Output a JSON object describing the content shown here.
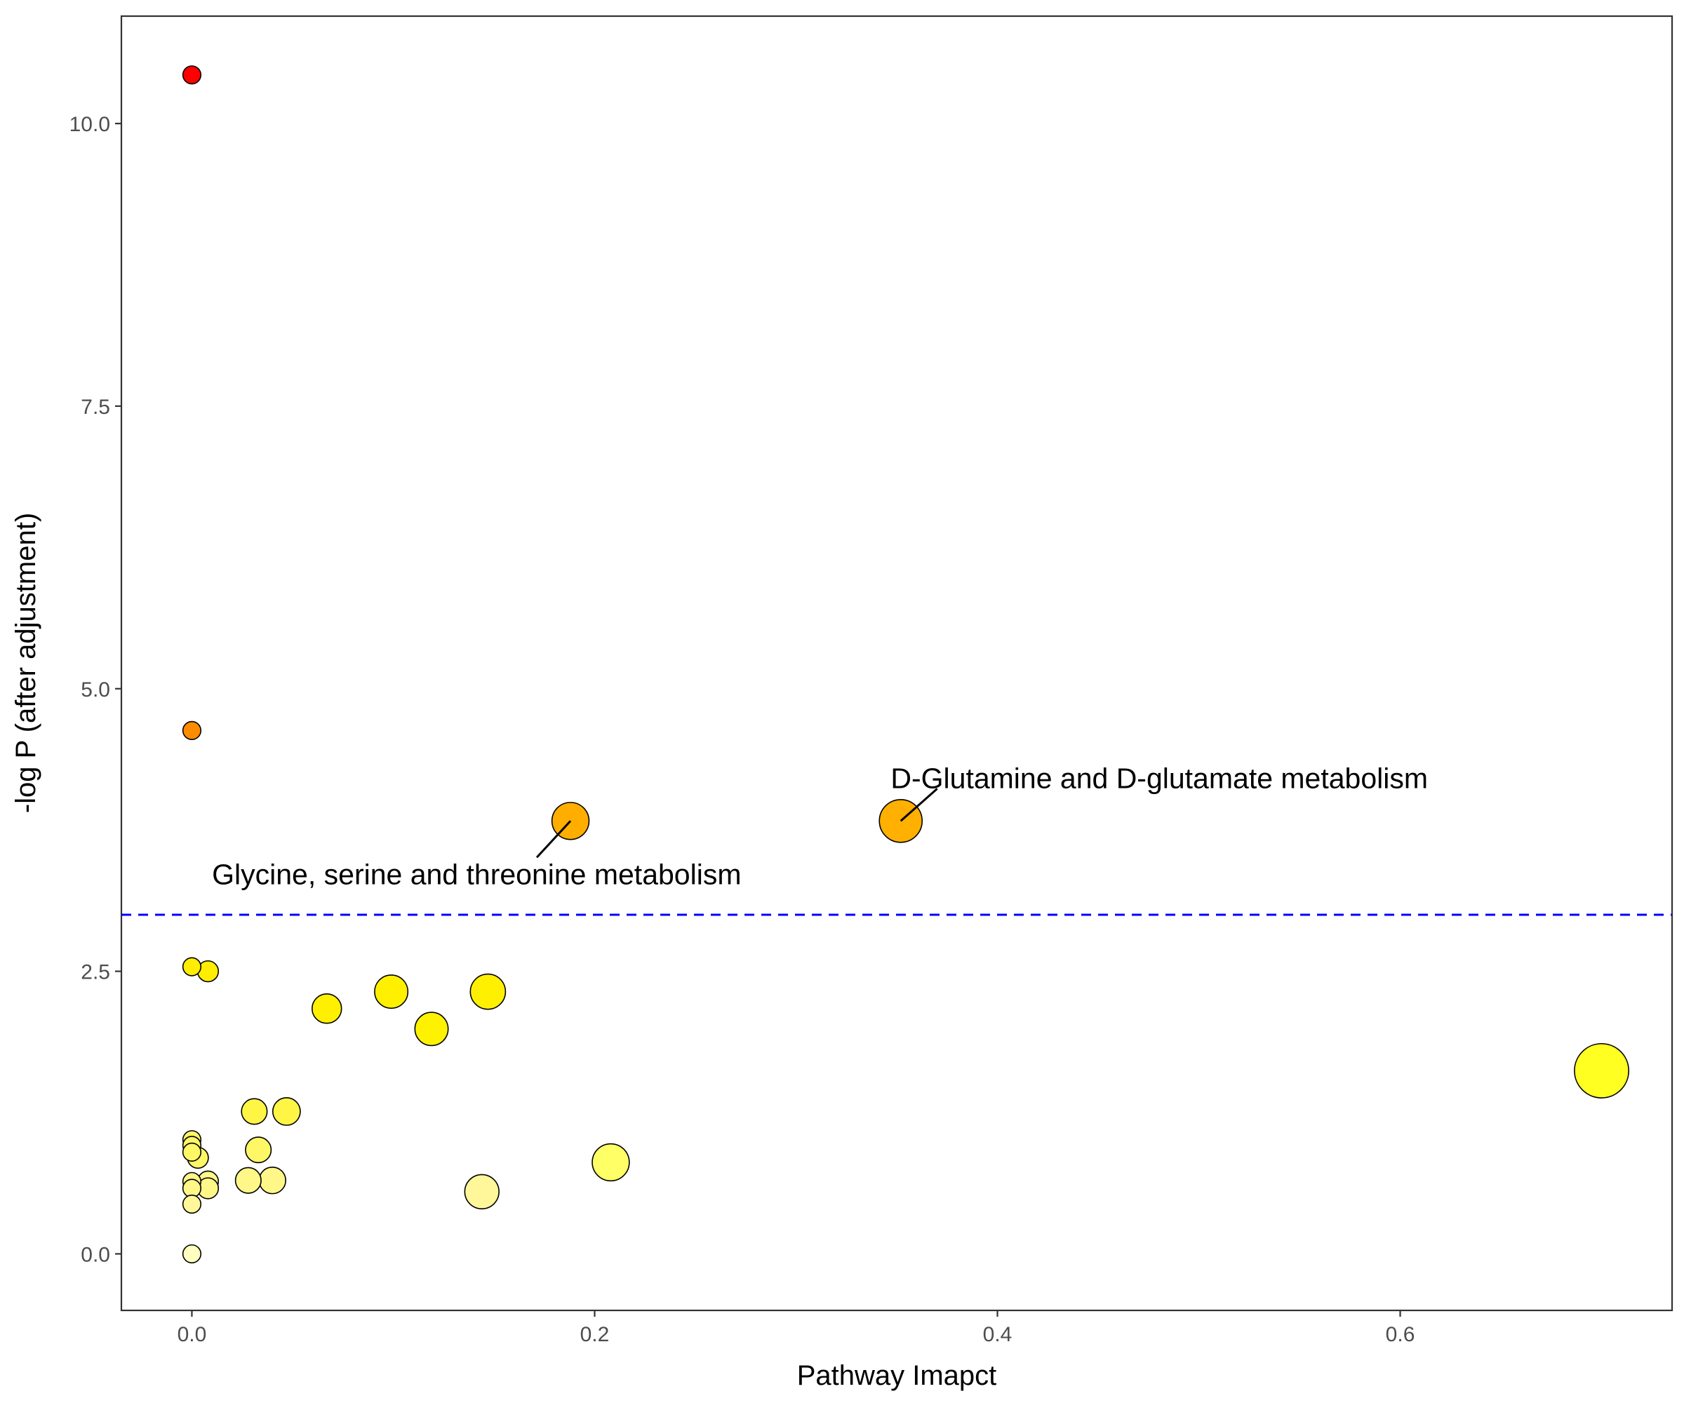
{
  "chart_data": {
    "type": "scatter",
    "title": "",
    "xlabel": "Pathway Imapct",
    "ylabel": "-log P (after adjustment)",
    "xlim": [
      -0.035,
      0.735
    ],
    "ylim": [
      -0.5,
      10.95
    ],
    "x_ticks": [
      {
        "value": 0.0,
        "label": "0.0"
      },
      {
        "value": 0.2,
        "label": "0.2"
      },
      {
        "value": 0.4,
        "label": "0.4"
      },
      {
        "value": 0.6,
        "label": "0.6"
      }
    ],
    "y_ticks": [
      {
        "value": 0.0,
        "label": "0.0"
      },
      {
        "value": 2.5,
        "label": "2.5"
      },
      {
        "value": 5.0,
        "label": "5.0"
      },
      {
        "value": 7.5,
        "label": "7.5"
      },
      {
        "value": 10.0,
        "label": "10.0"
      }
    ],
    "grid": false,
    "legend": "none",
    "threshold": {
      "y": 3.0,
      "color": "#0000ff",
      "style": "dashed"
    },
    "points": [
      {
        "x": 0.0,
        "y": 10.43,
        "size": 1.0,
        "color": "#ff0000"
      },
      {
        "x": 0.0,
        "y": 4.63,
        "size": 1.0,
        "color": "#ff8c00"
      },
      {
        "x": 0.188,
        "y": 3.83,
        "size": 3.0,
        "color": "#ffae00"
      },
      {
        "x": 0.352,
        "y": 3.83,
        "size": 3.6,
        "color": "#ffb000"
      },
      {
        "x": 0.0,
        "y": 2.54,
        "size": 1.0,
        "color": "#ffee00"
      },
      {
        "x": 0.008,
        "y": 2.5,
        "size": 1.3,
        "color": "#ffee00"
      },
      {
        "x": 0.067,
        "y": 2.17,
        "size": 2.2,
        "color": "#fff000"
      },
      {
        "x": 0.099,
        "y": 2.32,
        "size": 2.6,
        "color": "#fff000"
      },
      {
        "x": 0.147,
        "y": 2.32,
        "size": 2.8,
        "color": "#fff000"
      },
      {
        "x": 0.119,
        "y": 1.99,
        "size": 2.6,
        "color": "#fff200"
      },
      {
        "x": 0.7,
        "y": 1.62,
        "size": 4.8,
        "color": "#ffff22"
      },
      {
        "x": 0.031,
        "y": 1.26,
        "size": 1.8,
        "color": "#fff544"
      },
      {
        "x": 0.047,
        "y": 1.26,
        "size": 2.0,
        "color": "#fff544"
      },
      {
        "x": 0.0,
        "y": 1.01,
        "size": 1.0,
        "color": "#fff766"
      },
      {
        "x": 0.0,
        "y": 0.96,
        "size": 1.0,
        "color": "#fff766"
      },
      {
        "x": 0.0,
        "y": 0.9,
        "size": 1.0,
        "color": "#fff766"
      },
      {
        "x": 0.003,
        "y": 0.85,
        "size": 1.3,
        "color": "#fff766"
      },
      {
        "x": 0.033,
        "y": 0.92,
        "size": 1.8,
        "color": "#fff766"
      },
      {
        "x": 0.208,
        "y": 0.81,
        "size": 3.0,
        "color": "#ffff66"
      },
      {
        "x": 0.028,
        "y": 0.65,
        "size": 1.8,
        "color": "#fff788"
      },
      {
        "x": 0.04,
        "y": 0.65,
        "size": 1.9,
        "color": "#fff788"
      },
      {
        "x": 0.0,
        "y": 0.64,
        "size": 1.0,
        "color": "#fff788"
      },
      {
        "x": 0.008,
        "y": 0.64,
        "size": 1.3,
        "color": "#fff788"
      },
      {
        "x": 0.0,
        "y": 0.58,
        "size": 1.0,
        "color": "#fff788"
      },
      {
        "x": 0.008,
        "y": 0.58,
        "size": 1.3,
        "color": "#fff788"
      },
      {
        "x": 0.144,
        "y": 0.55,
        "size": 2.7,
        "color": "#fff799"
      },
      {
        "x": 0.0,
        "y": 0.44,
        "size": 1.0,
        "color": "#fff799"
      },
      {
        "x": 0.0,
        "y": 0.0,
        "size": 1.0,
        "color": "#ffffc0"
      }
    ],
    "annotations": [
      {
        "text": "D-Glutamine and D-glutamate metabolism",
        "point": [
          0.352,
          3.83
        ],
        "text_anchor": [
          0.347,
          4.12
        ]
      },
      {
        "text": "Glycine, serine and threonine metabolism",
        "point": [
          0.188,
          3.83
        ],
        "text_anchor": [
          0.01,
          3.27
        ]
      }
    ]
  }
}
